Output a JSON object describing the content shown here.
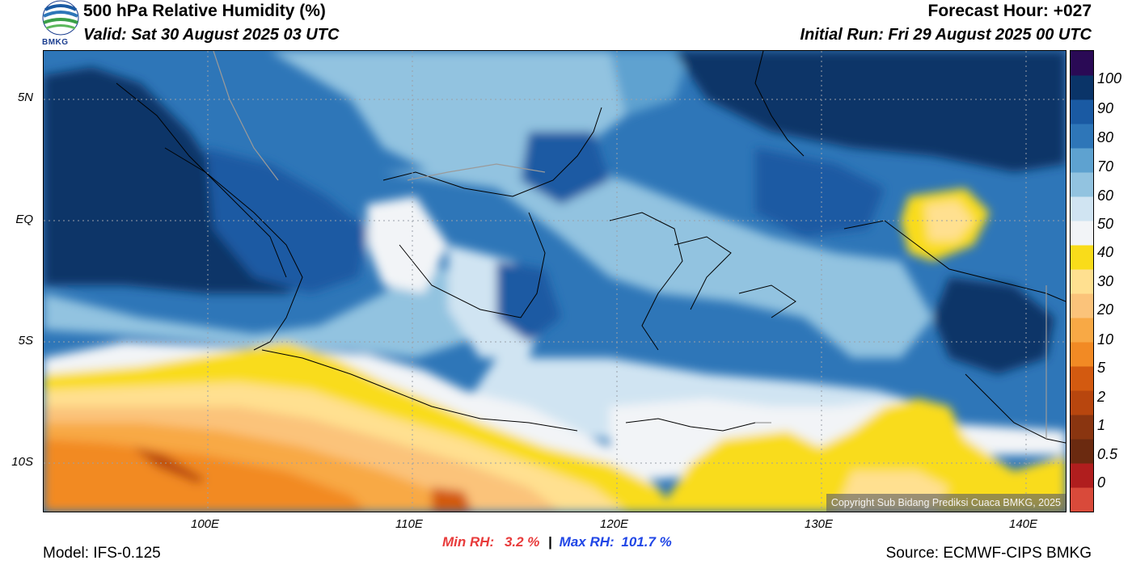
{
  "header": {
    "title": "500 hPa Relative Humidity (%)",
    "valid": "Valid: Sat 30 August 2025 03 UTC",
    "forecast_hour": "Forecast Hour: +027",
    "initial_run": "Initial Run: Fri 29 August 2025 00 UTC",
    "logo_text": "BMKG"
  },
  "map": {
    "lat_labels": [
      "5N",
      "EQ",
      "5S",
      "10S"
    ],
    "lon_labels": [
      "100E",
      "110E",
      "120E",
      "130E",
      "140E"
    ],
    "copyright": "Copyright Sub Bidang Prediksi Cuaca BMKG, 2025"
  },
  "colorbar": {
    "labels": [
      "100",
      "90",
      "80",
      "70",
      "60",
      "50",
      "40",
      "30",
      "20",
      "10",
      "5",
      "2",
      "1",
      "0.5",
      "0"
    ],
    "colors": [
      "#d94a3a",
      "#b01e1e",
      "#6b2a10",
      "#8a3510",
      "#b8460e",
      "#d35a10",
      "#f28a24",
      "#f8a945",
      "#fbc37a",
      "#ffe090",
      "#f9dc1a",
      "#f2f4f7",
      "#d0e4f2",
      "#92c3e0",
      "#5ea2d0",
      "#2e76b8",
      "#1a5aa3",
      "#0a3468",
      "#2a0a55"
    ]
  },
  "stats": {
    "min_label": "Min RH:",
    "min_value": "3.2 %",
    "separator": "|",
    "max_label": "Max RH:",
    "max_value": "101.7 %"
  },
  "footer": {
    "model": "Model: IFS-0.125",
    "source": "Source: ECMWF-CIPS BMKG"
  }
}
